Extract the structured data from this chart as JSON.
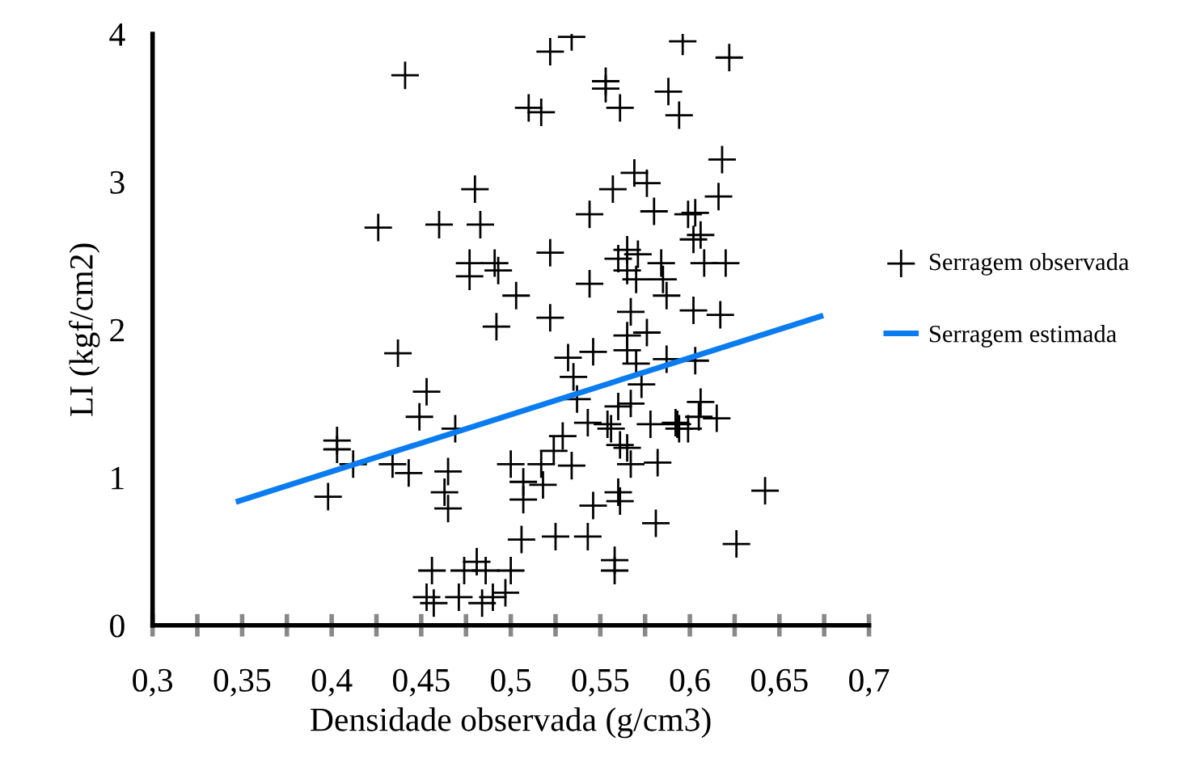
{
  "chart_data": {
    "type": "scatter",
    "xlabel": "Densidade observada (g/cm3)",
    "ylabel": "LI (kgf/cm2)",
    "xlim": [
      0.3,
      0.7
    ],
    "ylim": [
      0,
      4
    ],
    "xticks": [
      {
        "value": 0.3,
        "label": "0,3"
      },
      {
        "value": 0.325,
        "label": null
      },
      {
        "value": 0.35,
        "label": "0,35"
      },
      {
        "value": 0.375,
        "label": null
      },
      {
        "value": 0.4,
        "label": "0,4"
      },
      {
        "value": 0.425,
        "label": null
      },
      {
        "value": 0.45,
        "label": "0,45"
      },
      {
        "value": 0.475,
        "label": null
      },
      {
        "value": 0.5,
        "label": "0,5"
      },
      {
        "value": 0.525,
        "label": null
      },
      {
        "value": 0.55,
        "label": "0,55"
      },
      {
        "value": 0.575,
        "label": null
      },
      {
        "value": 0.6,
        "label": "0,6"
      },
      {
        "value": 0.625,
        "label": null
      },
      {
        "value": 0.65,
        "label": "0,65"
      },
      {
        "value": 0.675,
        "label": null
      },
      {
        "value": 0.7,
        "label": "0,7"
      }
    ],
    "yticks": [
      0,
      1,
      2,
      3,
      4
    ],
    "grid": false,
    "legend": "right",
    "series": [
      {
        "name": "Serragem observada",
        "type": "scatter",
        "marker": "cross",
        "color": "#000000",
        "x": [
          0.441,
          0.534,
          0.522,
          0.596,
          0.553,
          0.553,
          0.588,
          0.561,
          0.594,
          0.51,
          0.517,
          0.569,
          0.576,
          0.557,
          0.48,
          0.426,
          0.46,
          0.483,
          0.544,
          0.58,
          0.599,
          0.602,
          0.522,
          0.477,
          0.491,
          0.477,
          0.493,
          0.503,
          0.544,
          0.565,
          0.571,
          0.56,
          0.565,
          0.584,
          0.57,
          0.585,
          0.587,
          0.522,
          0.492,
          0.567,
          0.576,
          0.602,
          0.622,
          0.618,
          0.616,
          0.603,
          0.606,
          0.608,
          0.62,
          0.617,
          0.565,
          0.437,
          0.532,
          0.546,
          0.565,
          0.57,
          0.587,
          0.573,
          0.535,
          0.537,
          0.453,
          0.449,
          0.469,
          0.56,
          0.567,
          0.543,
          0.554,
          0.578,
          0.594,
          0.561,
          0.565,
          0.403,
          0.403,
          0.412,
          0.434,
          0.443,
          0.398,
          0.465,
          0.463,
          0.465,
          0.529,
          0.524,
          0.534,
          0.5,
          0.517,
          0.507,
          0.518,
          0.507,
          0.567,
          0.582,
          0.56,
          0.561,
          0.546,
          0.581,
          0.506,
          0.525,
          0.543,
          0.558,
          0.558,
          0.456,
          0.474,
          0.481,
          0.486,
          0.5,
          0.453,
          0.457,
          0.471,
          0.484,
          0.49,
          0.497,
          0.556,
          0.592,
          0.603,
          0.606,
          0.605,
          0.615,
          0.593,
          0.599,
          0.642,
          0.626
        ],
        "values": [
          3.72,
          3.98,
          3.88,
          3.95,
          3.68,
          3.63,
          3.61,
          3.5,
          3.45,
          3.5,
          3.47,
          3.06,
          2.99,
          2.95,
          2.95,
          2.69,
          2.71,
          2.71,
          2.78,
          2.8,
          2.78,
          2.61,
          2.52,
          2.45,
          2.45,
          2.36,
          2.4,
          2.23,
          2.31,
          2.54,
          2.51,
          2.48,
          2.4,
          2.45,
          2.34,
          2.34,
          2.23,
          2.08,
          2.02,
          2.12,
          1.98,
          2.13,
          3.84,
          3.15,
          2.9,
          2.79,
          2.64,
          2.45,
          2.45,
          2.1,
          1.96,
          1.84,
          1.81,
          1.85,
          1.86,
          1.77,
          1.8,
          1.63,
          1.68,
          1.53,
          1.58,
          1.41,
          1.33,
          1.48,
          1.5,
          1.37,
          1.36,
          1.36,
          1.33,
          1.22,
          1.2,
          1.25,
          1.19,
          1.09,
          1.09,
          1.03,
          0.87,
          1.04,
          0.9,
          0.79,
          1.28,
          1.18,
          1.08,
          1.09,
          1.09,
          0.97,
          0.95,
          0.85,
          1.09,
          1.1,
          0.9,
          0.84,
          0.81,
          0.69,
          0.58,
          0.6,
          0.6,
          0.44,
          0.37,
          0.37,
          0.37,
          0.43,
          0.37,
          0.37,
          0.19,
          0.15,
          0.19,
          0.15,
          0.19,
          0.22,
          1.33,
          1.37,
          1.79,
          1.51,
          1.41,
          1.4,
          1.36,
          1.33,
          0.91,
          0.55
        ]
      },
      {
        "name": "Serragem estimada",
        "type": "line",
        "marker": "none",
        "color": "#0a7cf0",
        "x": [
          0.348,
          0.673
        ],
        "values": [
          0.84,
          2.09
        ]
      }
    ]
  }
}
